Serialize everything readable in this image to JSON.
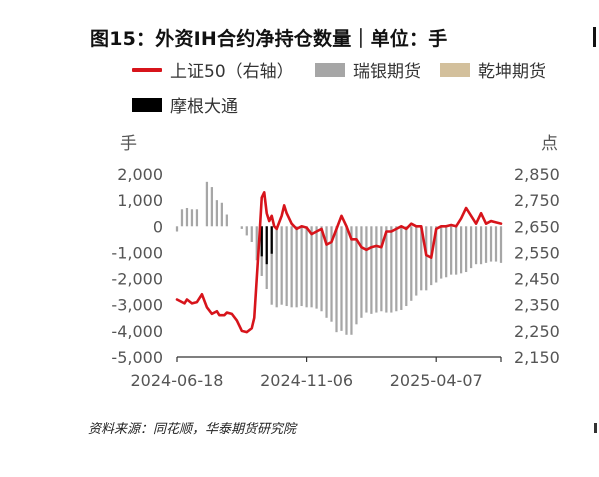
{
  "header": {
    "title": "图15：外资IH合约净持仓数量｜单位：手"
  },
  "legend": {
    "items": [
      {
        "label": "上证50（右轴）",
        "color": "#d7141b",
        "kind": "line"
      },
      {
        "label": "瑞银期货",
        "color": "#a6a6a6",
        "kind": "box"
      },
      {
        "label": "乾坤期货",
        "color": "#d3c09c",
        "kind": "box"
      },
      {
        "label": "摩根大通",
        "color": "#000000",
        "kind": "box"
      }
    ]
  },
  "footer": {
    "source": "资料来源：同花顺，华泰期货研究院"
  },
  "chart_data": {
    "type": "bar",
    "combo": "bar + line (secondary axis)",
    "left_axis": {
      "unit_label": "手",
      "ylim": [
        -5000,
        2000
      ],
      "ticks": [
        2000,
        1000,
        0,
        -1000,
        -2000,
        -3000,
        -4000,
        -5000
      ],
      "tick_labels": [
        "2,000",
        "1,000",
        "0",
        "-1,000",
        "-2,000",
        "-3,000",
        "-4,000",
        "-5,000"
      ]
    },
    "right_axis": {
      "unit_label": "点",
      "ylim": [
        2150,
        2850
      ],
      "ticks": [
        2850,
        2750,
        2650,
        2550,
        2450,
        2350,
        2250,
        2150
      ],
      "tick_labels": [
        "2,850",
        "2,750",
        "2,650",
        "2,550",
        "2,450",
        "2,350",
        "2,250",
        "2,150"
      ]
    },
    "x_axis": {
      "tick_labels": [
        "2024-06-18",
        "2024-11-06",
        "2025-04-07"
      ],
      "tick_index": [
        0,
        26,
        52
      ],
      "last_index": 65
    },
    "grid": false,
    "legend_position": "top",
    "series": [
      {
        "name": "瑞银期货",
        "axis": "left",
        "kind": "bar",
        "color": "#a6a6a6",
        "values": [
          -200,
          650,
          700,
          650,
          650,
          0,
          1700,
          1500,
          1000,
          900,
          450,
          0,
          0,
          -100,
          -350,
          -600,
          -1300,
          -1900,
          -2400,
          -3000,
          -3100,
          -3000,
          -3050,
          -3100,
          -3100,
          -3050,
          -3100,
          -3100,
          -3150,
          -3250,
          -3500,
          -3650,
          -4050,
          -4000,
          -4150,
          -4150,
          -3750,
          -3500,
          -3300,
          -3350,
          -3300,
          -3250,
          -3300,
          -3300,
          -3250,
          -3200,
          -3050,
          -2850,
          -2650,
          -2450,
          -2450,
          -2250,
          -2150,
          -2000,
          -1950,
          -1850,
          -1850,
          -1800,
          -1750,
          -1600,
          -1450,
          -1450,
          -1400,
          -1350,
          -1350,
          -1400
        ]
      },
      {
        "name": "摩根大通",
        "axis": "left",
        "kind": "bar",
        "color": "#000000",
        "values": [
          0,
          0,
          0,
          0,
          0,
          0,
          0,
          0,
          0,
          0,
          0,
          0,
          0,
          0,
          0,
          0,
          0,
          -1150,
          -1450,
          -1050,
          0,
          0,
          0,
          0,
          0,
          0,
          0,
          0,
          0,
          0,
          0,
          0,
          0,
          0,
          0,
          0,
          0,
          0,
          0,
          0,
          0,
          0,
          0,
          0,
          0,
          0,
          0,
          0,
          0,
          0,
          0,
          0,
          0,
          0,
          0,
          0,
          0,
          0,
          0,
          0,
          0,
          0,
          0,
          0,
          0,
          0
        ]
      },
      {
        "name": "乾坤期货",
        "axis": "left",
        "kind": "bar",
        "color": "#d3c09c",
        "values": [
          0,
          0,
          0,
          0,
          0,
          0,
          0,
          0,
          0,
          0,
          0,
          0,
          0,
          0,
          0,
          0,
          0,
          0,
          0,
          0,
          0,
          0,
          0,
          0,
          0,
          0,
          0,
          0,
          0,
          0,
          0,
          0,
          0,
          0,
          0,
          0,
          0,
          0,
          0,
          0,
          0,
          0,
          0,
          0,
          0,
          0,
          0,
          0,
          0,
          0,
          0,
          0,
          0,
          0,
          0,
          0,
          0,
          0,
          0,
          0,
          0,
          0,
          0,
          0,
          0,
          0
        ]
      },
      {
        "name": "上证50（右轴）",
        "axis": "right",
        "kind": "line",
        "color": "#d7141b",
        "x": [
          0,
          1.5,
          2,
          3,
          4,
          5,
          6,
          7,
          8,
          8.5,
          9.5,
          10,
          11,
          12,
          13,
          14,
          15,
          15.5,
          16,
          16.5,
          17,
          17.5,
          18,
          18.5,
          19,
          19.5,
          20,
          21,
          21.5,
          22,
          23,
          24,
          25,
          26,
          27,
          28,
          29,
          30,
          31,
          32,
          33,
          34,
          35,
          36,
          37,
          38,
          39,
          40,
          41,
          42,
          43,
          44,
          45,
          46,
          47,
          48,
          49,
          50,
          51,
          52,
          53,
          54,
          55,
          56,
          57,
          58,
          59,
          60,
          61,
          62,
          63,
          64,
          65
        ],
        "values": [
          2370,
          2355,
          2370,
          2355,
          2360,
          2390,
          2340,
          2315,
          2325,
          2310,
          2310,
          2320,
          2315,
          2290,
          2250,
          2245,
          2260,
          2300,
          2450,
          2600,
          2760,
          2780,
          2700,
          2670,
          2690,
          2650,
          2640,
          2690,
          2730,
          2700,
          2660,
          2640,
          2650,
          2645,
          2620,
          2630,
          2640,
          2580,
          2590,
          2640,
          2690,
          2650,
          2600,
          2600,
          2570,
          2560,
          2570,
          2575,
          2570,
          2630,
          2630,
          2640,
          2650,
          2640,
          2660,
          2650,
          2650,
          2540,
          2530,
          2640,
          2650,
          2650,
          2655,
          2650,
          2680,
          2720,
          2690,
          2660,
          2700,
          2660,
          2670,
          2665,
          2660
        ]
      }
    ]
  }
}
